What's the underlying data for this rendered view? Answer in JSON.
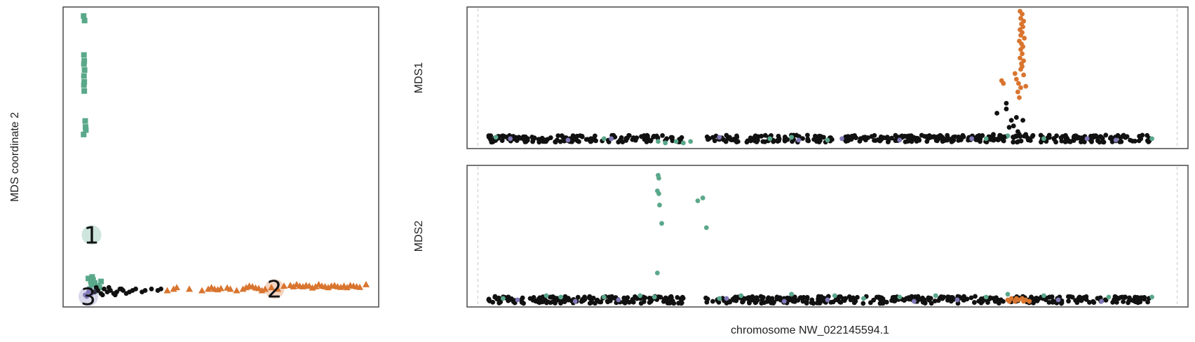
{
  "colors": {
    "cluster1": "#5aa88a",
    "cluster2": "#d9752f",
    "cluster3": "#8079b8",
    "unassigned": "#111111",
    "frame": "#555555"
  },
  "chart_data": [
    {
      "type": "scatter",
      "panel": "mds-scatter",
      "ylabel": "MDS coordinate 2",
      "xlim": [
        0,
        1
      ],
      "ylim": [
        0,
        1
      ],
      "legend": "none",
      "cluster_labels": [
        {
          "text": "1",
          "x": 0.09,
          "y": 0.24,
          "color": "#5aa88a"
        },
        {
          "text": "2",
          "x": 0.67,
          "y": 0.06,
          "color": "#d9752f"
        },
        {
          "text": "3",
          "x": 0.08,
          "y": 0.035,
          "color": "#8079b8"
        }
      ],
      "series": [
        {
          "name": "1",
          "color": "#5aa88a",
          "marker": "square",
          "x": [
            0.065,
            0.068,
            0.066,
            0.067,
            0.066,
            0.068,
            0.066,
            0.067,
            0.066,
            0.067,
            0.07,
            0.071,
            0.072,
            0.065,
            0.1,
            0.12,
            0.11,
            0.085,
            0.09,
            0.095,
            0.115,
            0.08,
            0.105,
            0.092,
            0.088
          ],
          "y": [
            0.97,
            0.955,
            0.84,
            0.82,
            0.81,
            0.79,
            0.77,
            0.75,
            0.74,
            0.72,
            0.62,
            0.6,
            0.59,
            0.575,
            0.08,
            0.085,
            0.07,
            0.06,
            0.075,
            0.09,
            0.065,
            0.095,
            0.055,
            0.1,
            0.085
          ]
        },
        {
          "name": "2",
          "color": "#d9752f",
          "marker": "triangle",
          "x": [
            0.33,
            0.35,
            0.36,
            0.4,
            0.44,
            0.46,
            0.47,
            0.48,
            0.49,
            0.5,
            0.52,
            0.53,
            0.55,
            0.57,
            0.58,
            0.59,
            0.6,
            0.61,
            0.62,
            0.63,
            0.64,
            0.66,
            0.68,
            0.7,
            0.72,
            0.73,
            0.74,
            0.75,
            0.76,
            0.77,
            0.78,
            0.79,
            0.8,
            0.81,
            0.82,
            0.83,
            0.84,
            0.85,
            0.86,
            0.87,
            0.88,
            0.89,
            0.9,
            0.91,
            0.92,
            0.93,
            0.94,
            0.96
          ],
          "y": [
            0.055,
            0.06,
            0.065,
            0.06,
            0.055,
            0.06,
            0.065,
            0.06,
            0.058,
            0.062,
            0.064,
            0.06,
            0.055,
            0.06,
            0.065,
            0.07,
            0.068,
            0.064,
            0.062,
            0.055,
            0.06,
            0.065,
            0.06,
            0.07,
            0.072,
            0.068,
            0.075,
            0.07,
            0.068,
            0.072,
            0.07,
            0.064,
            0.068,
            0.075,
            0.07,
            0.068,
            0.065,
            0.07,
            0.072,
            0.068,
            0.066,
            0.07,
            0.065,
            0.072,
            0.07,
            0.068,
            0.066,
            0.075
          ]
        },
        {
          "name": "3",
          "color": "#8079b8",
          "marker": "circle",
          "x": [
            0.07,
            0.08,
            0.09,
            0.075,
            0.085
          ],
          "y": [
            0.04,
            0.05,
            0.045,
            0.035,
            0.055
          ]
        },
        {
          "name": "unassigned",
          "color": "#111111",
          "marker": "circle",
          "x": [
            0.1,
            0.11,
            0.12,
            0.13,
            0.14,
            0.15,
            0.16,
            0.17,
            0.18,
            0.19,
            0.2,
            0.21,
            0.22,
            0.23,
            0.25,
            0.26,
            0.28,
            0.3,
            0.31,
            0.105,
            0.125,
            0.145,
            0.165,
            0.185
          ],
          "y": [
            0.05,
            0.055,
            0.045,
            0.06,
            0.05,
            0.055,
            0.045,
            0.05,
            0.06,
            0.055,
            0.045,
            0.05,
            0.055,
            0.06,
            0.05,
            0.055,
            0.06,
            0.055,
            0.06,
            0.065,
            0.04,
            0.065,
            0.04,
            0.06
          ]
        }
      ]
    },
    {
      "type": "scatter",
      "panel": "mds1-track",
      "ylabel": "MDS1",
      "xlim": [
        0,
        1
      ],
      "ylim": [
        0,
        1
      ],
      "dashed_vlines_x": [
        0.015,
        0.985
      ],
      "baseline": {
        "y": 0.07,
        "x_start": 0.03,
        "x_end": 0.95,
        "gap": [
          0.3,
          0.33
        ]
      },
      "series": [
        {
          "name": "1",
          "color": "#5aa88a",
          "x": [
            0.04,
            0.19,
            0.265,
            0.275,
            0.29,
            0.3,
            0.31,
            0.42,
            0.45,
            0.5,
            0.72,
            0.75,
            0.8,
            0.95
          ],
          "y": [
            0.08,
            0.07,
            0.05,
            0.04,
            0.05,
            0.04,
            0.05,
            0.07,
            0.08,
            0.06,
            0.07,
            0.09,
            0.07,
            0.07
          ]
        },
        {
          "name": "2",
          "color": "#d9752f",
          "x": [
            0.767,
            0.77,
            0.768,
            0.772,
            0.769,
            0.771,
            0.767,
            0.77,
            0.768,
            0.773,
            0.766,
            0.769,
            0.771,
            0.768,
            0.77,
            0.767,
            0.772,
            0.769,
            0.77,
            0.768,
            0.76,
            0.762,
            0.765,
            0.768,
            0.764,
            0.766,
            0.7415,
            0.744,
            0.772,
            0.775
          ],
          "y": [
            0.97,
            0.95,
            0.92,
            0.9,
            0.88,
            0.86,
            0.84,
            0.82,
            0.8,
            0.78,
            0.76,
            0.74,
            0.72,
            0.7,
            0.67,
            0.64,
            0.62,
            0.6,
            0.58,
            0.56,
            0.53,
            0.49,
            0.46,
            0.43,
            0.4,
            0.36,
            0.48,
            0.46,
            0.52,
            0.44
          ]
        },
        {
          "name": "3",
          "color": "#8079b8",
          "x": [
            0.06,
            0.14,
            0.2,
            0.35,
            0.46,
            0.52,
            0.6,
            0.7,
            0.86,
            0.9
          ],
          "y": [
            0.07,
            0.06,
            0.07,
            0.08,
            0.06,
            0.07,
            0.06,
            0.07,
            0.07,
            0.06
          ]
        },
        {
          "name": "unassigned",
          "color": "#111111",
          "x": [
            0.735,
            0.748,
            0.755,
            0.762,
            0.752,
            0.758,
            0.748,
            0.764,
            0.771,
            0.766,
            0.775,
            0.73,
            0.74,
            0.745
          ],
          "y": [
            0.25,
            0.28,
            0.2,
            0.22,
            0.15,
            0.16,
            0.32,
            0.12,
            0.2,
            0.1,
            0.1,
            0.1,
            0.09,
            0.08
          ]
        }
      ]
    },
    {
      "type": "scatter",
      "panel": "mds2-track",
      "ylabel": "MDS2",
      "xlabel": "chromosome NW_022145594.1",
      "xlim": [
        0,
        1
      ],
      "ylim": [
        0,
        1
      ],
      "dashed_vlines_x": [
        0.015,
        0.985
      ],
      "baseline": {
        "y": 0.05,
        "x_start": 0.03,
        "x_end": 0.95,
        "gap": [
          0.3,
          0.33
        ]
      },
      "series": [
        {
          "name": "1",
          "color": "#5aa88a",
          "x": [
            0.265,
            0.266,
            0.264,
            0.266,
            0.267,
            0.27,
            0.264,
            0.32,
            0.327,
            0.332,
            0.05,
            0.11,
            0.13,
            0.19,
            0.24,
            0.26,
            0.35,
            0.38,
            0.45,
            0.51,
            0.55,
            0.6,
            0.65,
            0.72,
            0.75,
            0.8,
            0.89,
            0.95
          ],
          "y": [
            0.93,
            0.91,
            0.82,
            0.8,
            0.72,
            0.59,
            0.24,
            0.75,
            0.77,
            0.56,
            0.06,
            0.08,
            0.07,
            0.07,
            0.08,
            0.07,
            0.06,
            0.08,
            0.09,
            0.08,
            0.06,
            0.07,
            0.08,
            0.07,
            0.09,
            0.08,
            0.07,
            0.07
          ]
        },
        {
          "name": "2",
          "color": "#d9752f",
          "x": [
            0.75,
            0.755,
            0.76,
            0.765,
            0.77,
            0.775,
            0.78,
            0.752,
            0.762,
            0.772
          ],
          "y": [
            0.05,
            0.06,
            0.04,
            0.05,
            0.06,
            0.05,
            0.04,
            0.04,
            0.06,
            0.04
          ]
        },
        {
          "name": "3",
          "color": "#8079b8",
          "x": [
            0.07,
            0.15,
            0.21,
            0.36,
            0.44,
            0.5,
            0.62,
            0.68,
            0.82,
            0.88
          ],
          "y": [
            0.05,
            0.04,
            0.05,
            0.06,
            0.04,
            0.05,
            0.04,
            0.05,
            0.05,
            0.04
          ]
        }
      ]
    }
  ]
}
